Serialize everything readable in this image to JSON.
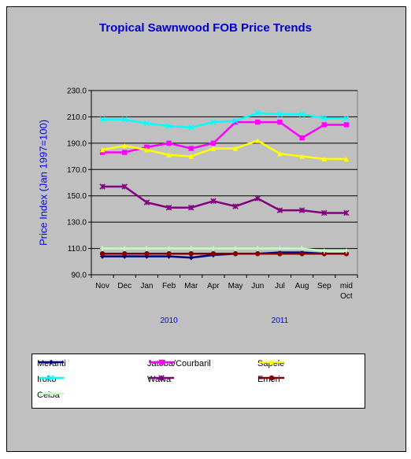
{
  "chart_data": {
    "type": "line",
    "title": "Tropical Sawnwood FOB Price Trends",
    "ylabel": "Price Index  (Jan 1997=100)",
    "xlabel": "",
    "categories": [
      "Nov",
      "Dec",
      "Jan",
      "Feb",
      "Mar",
      "Apr",
      "May",
      "Jun",
      "Jul",
      "Aug",
      "Sep",
      "mid Oct"
    ],
    "year_labels": [
      {
        "label": "2010",
        "category": "Feb"
      },
      {
        "label": "2011",
        "category": "Jul"
      }
    ],
    "ylim": [
      90,
      230
    ],
    "yticks": [
      "230.0",
      "210.0",
      "190.0",
      "170.0",
      "150.0",
      "130.0",
      "110.0",
      "90.0"
    ],
    "grid": true,
    "legend_position": "bottom",
    "series": [
      {
        "name": "Meranti",
        "color": "#000080",
        "marker": "diamond",
        "values": [
          104,
          104,
          104,
          104,
          103,
          105,
          106,
          106,
          107,
          107,
          106,
          106
        ]
      },
      {
        "name": "Jatoba/Courbaril",
        "color": "#ff00ff",
        "marker": "square",
        "values": [
          183,
          183,
          187,
          190,
          186,
          190,
          206,
          206,
          206,
          194,
          204,
          204
        ]
      },
      {
        "name": "Sapele",
        "color": "#ffff00",
        "marker": "triangle",
        "values": [
          185,
          188,
          185,
          181,
          180,
          186,
          186,
          192,
          182,
          180,
          178,
          178
        ]
      },
      {
        "name": "Iroko",
        "color": "#00ffff",
        "marker": "x",
        "values": [
          208,
          208,
          205,
          203,
          202,
          206,
          207,
          213,
          212,
          212,
          209,
          209
        ]
      },
      {
        "name": "Wawa",
        "color": "#800080",
        "marker": "asterisk",
        "values": [
          157,
          157,
          145,
          141,
          141,
          146,
          142,
          148,
          139,
          139,
          137,
          137
        ]
      },
      {
        "name": "Emeri",
        "color": "#800000",
        "marker": "circle",
        "values": [
          106,
          106,
          106,
          106,
          106,
          106,
          106,
          106,
          106,
          106,
          106,
          106
        ]
      },
      {
        "name": "Ceiba",
        "color": "#c0ffc0",
        "marker": "plus",
        "values": [
          110,
          110,
          110,
          110,
          110,
          110,
          110,
          110,
          110,
          110,
          108,
          108
        ]
      }
    ]
  }
}
